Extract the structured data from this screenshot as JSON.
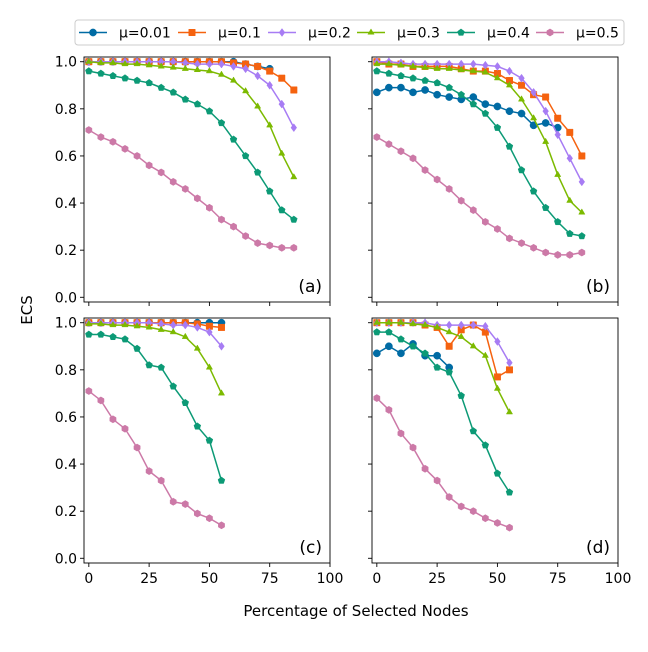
{
  "figure": {
    "xlabel": "Percentage of Selected Nodes",
    "ylabel": "ECS"
  },
  "legend": {
    "placement": "top-center",
    "entries": [
      {
        "label": "μ=0.01",
        "color": "#006ba4",
        "marker": "circle"
      },
      {
        "label": "μ=0.1",
        "color": "#f5620f",
        "marker": "square"
      },
      {
        "label": "μ=0.2",
        "color": "#a77cf4",
        "marker": "diamond"
      },
      {
        "label": "μ=0.3",
        "color": "#7cba00",
        "marker": "triangle"
      },
      {
        "label": "μ=0.4",
        "color": "#0c9a76",
        "marker": "pentagon"
      },
      {
        "label": "μ=0.5",
        "color": "#cc79a7",
        "marker": "hexagon"
      }
    ]
  },
  "chart_data": [
    {
      "type": "line",
      "panel": "(a)",
      "xlim": [
        -2,
        100
      ],
      "ylim": [
        -0.02,
        1.02
      ],
      "xticks": [
        "0",
        "25",
        "50",
        "75",
        "100"
      ],
      "yticks": [
        "0.0",
        "0.2",
        "0.4",
        "0.6",
        "0.8",
        "1.0"
      ],
      "x_tick_labels_shown": false,
      "y_tick_labels_shown": true,
      "series": [
        {
          "name": "μ=0.01",
          "x": [
            0,
            5,
            10,
            15,
            20,
            25,
            30,
            35,
            40,
            45,
            50,
            55,
            60,
            65,
            70,
            75
          ],
          "y": [
            1.0,
            1.0,
            1.0,
            1.0,
            1.0,
            1.0,
            1.0,
            1.0,
            1.0,
            1.0,
            1.0,
            1.0,
            1.0,
            0.99,
            0.98,
            0.97
          ]
        },
        {
          "name": "μ=0.1",
          "x": [
            0,
            5,
            10,
            15,
            20,
            25,
            30,
            35,
            40,
            45,
            50,
            55,
            60,
            65,
            70,
            75,
            80,
            85
          ],
          "y": [
            1.0,
            1.0,
            1.0,
            1.0,
            1.0,
            1.0,
            1.0,
            1.0,
            1.0,
            1.0,
            1.0,
            1.0,
            0.995,
            0.99,
            0.98,
            0.96,
            0.93,
            0.88
          ]
        },
        {
          "name": "μ=0.2",
          "x": [
            0,
            5,
            10,
            15,
            20,
            25,
            30,
            35,
            40,
            45,
            50,
            55,
            60,
            65,
            70,
            75,
            80,
            85
          ],
          "y": [
            1.0,
            1.0,
            1.0,
            1.0,
            1.0,
            1.0,
            1.0,
            1.0,
            0.995,
            0.99,
            0.99,
            0.99,
            0.98,
            0.97,
            0.94,
            0.9,
            0.82,
            0.72
          ]
        },
        {
          "name": "μ=0.3",
          "x": [
            0,
            5,
            10,
            15,
            20,
            25,
            30,
            35,
            40,
            45,
            50,
            55,
            60,
            65,
            70,
            75,
            80,
            85
          ],
          "y": [
            1.0,
            0.995,
            0.995,
            0.99,
            0.99,
            0.985,
            0.98,
            0.975,
            0.97,
            0.965,
            0.96,
            0.945,
            0.92,
            0.875,
            0.81,
            0.73,
            0.61,
            0.51
          ]
        },
        {
          "name": "μ=0.4",
          "x": [
            0,
            5,
            10,
            15,
            20,
            25,
            30,
            35,
            40,
            45,
            50,
            55,
            60,
            65,
            70,
            75,
            80,
            85
          ],
          "y": [
            0.96,
            0.95,
            0.94,
            0.93,
            0.92,
            0.91,
            0.89,
            0.87,
            0.84,
            0.82,
            0.79,
            0.74,
            0.67,
            0.6,
            0.53,
            0.45,
            0.37,
            0.33
          ]
        },
        {
          "name": "μ=0.5",
          "x": [
            0,
            5,
            10,
            15,
            20,
            25,
            30,
            35,
            40,
            45,
            50,
            55,
            60,
            65,
            70,
            75,
            80,
            85
          ],
          "y": [
            0.71,
            0.68,
            0.66,
            0.63,
            0.6,
            0.56,
            0.53,
            0.49,
            0.46,
            0.42,
            0.38,
            0.33,
            0.3,
            0.26,
            0.23,
            0.22,
            0.21,
            0.21
          ]
        }
      ]
    },
    {
      "type": "line",
      "panel": "(b)",
      "xlim": [
        -2,
        100
      ],
      "ylim": [
        -0.02,
        1.02
      ],
      "xticks": [
        "0",
        "25",
        "50",
        "75",
        "100"
      ],
      "yticks": [
        "0.0",
        "0.2",
        "0.4",
        "0.6",
        "0.8",
        "1.0"
      ],
      "x_tick_labels_shown": false,
      "y_tick_labels_shown": false,
      "series": [
        {
          "name": "μ=0.01",
          "x": [
            0,
            5,
            10,
            15,
            20,
            25,
            30,
            35,
            40,
            45,
            50,
            55,
            60,
            65,
            70,
            75
          ],
          "y": [
            0.87,
            0.89,
            0.89,
            0.87,
            0.88,
            0.86,
            0.85,
            0.84,
            0.85,
            0.82,
            0.81,
            0.79,
            0.78,
            0.73,
            0.74,
            0.72
          ]
        },
        {
          "name": "μ=0.1",
          "x": [
            0,
            5,
            10,
            15,
            20,
            25,
            30,
            35,
            40,
            45,
            50,
            55,
            60,
            65,
            70,
            75,
            80,
            85
          ],
          "y": [
            1.0,
            0.99,
            0.99,
            0.98,
            0.98,
            0.98,
            0.98,
            0.97,
            0.96,
            0.96,
            0.95,
            0.92,
            0.9,
            0.86,
            0.85,
            0.76,
            0.7,
            0.6
          ]
        },
        {
          "name": "μ=0.2",
          "x": [
            0,
            5,
            10,
            15,
            20,
            25,
            30,
            35,
            40,
            45,
            50,
            55,
            60,
            65,
            70,
            75,
            80,
            85
          ],
          "y": [
            1.0,
            1.0,
            0.995,
            0.99,
            0.99,
            0.99,
            0.99,
            0.99,
            0.99,
            0.985,
            0.98,
            0.96,
            0.93,
            0.87,
            0.79,
            0.69,
            0.59,
            0.49
          ]
        },
        {
          "name": "μ=0.3",
          "x": [
            0,
            5,
            10,
            15,
            20,
            25,
            30,
            35,
            40,
            45,
            50,
            55,
            60,
            65,
            70,
            75,
            80,
            85
          ],
          "y": [
            0.99,
            0.99,
            0.985,
            0.98,
            0.975,
            0.97,
            0.97,
            0.965,
            0.96,
            0.955,
            0.93,
            0.9,
            0.84,
            0.76,
            0.66,
            0.52,
            0.41,
            0.36
          ]
        },
        {
          "name": "μ=0.4",
          "x": [
            0,
            5,
            10,
            15,
            20,
            25,
            30,
            35,
            40,
            45,
            50,
            55,
            60,
            65,
            70,
            75,
            80,
            85
          ],
          "y": [
            0.96,
            0.95,
            0.94,
            0.93,
            0.92,
            0.91,
            0.89,
            0.86,
            0.82,
            0.78,
            0.72,
            0.64,
            0.54,
            0.45,
            0.38,
            0.32,
            0.27,
            0.26
          ]
        },
        {
          "name": "μ=0.5",
          "x": [
            0,
            5,
            10,
            15,
            20,
            25,
            30,
            35,
            40,
            45,
            50,
            55,
            60,
            65,
            70,
            75,
            80,
            85
          ],
          "y": [
            0.68,
            0.65,
            0.62,
            0.59,
            0.54,
            0.5,
            0.46,
            0.41,
            0.37,
            0.32,
            0.29,
            0.25,
            0.23,
            0.21,
            0.19,
            0.18,
            0.18,
            0.19
          ]
        }
      ]
    },
    {
      "type": "line",
      "panel": "(c)",
      "xlim": [
        -2,
        100
      ],
      "ylim": [
        -0.02,
        1.02
      ],
      "xticks": [
        "0",
        "25",
        "50",
        "75",
        "100"
      ],
      "yticks": [
        "0.0",
        "0.2",
        "0.4",
        "0.6",
        "0.8",
        "1.0"
      ],
      "x_tick_labels_shown": true,
      "y_tick_labels_shown": true,
      "series": [
        {
          "name": "μ=0.01",
          "x": [
            0,
            5,
            10,
            15,
            20,
            25,
            30,
            35,
            40,
            45,
            50,
            55
          ],
          "y": [
            1.0,
            1.0,
            1.0,
            1.0,
            1.0,
            1.0,
            1.0,
            1.0,
            1.0,
            1.0,
            1.0,
            1.0
          ]
        },
        {
          "name": "μ=0.1",
          "x": [
            0,
            5,
            10,
            15,
            20,
            25,
            30,
            35,
            40,
            45,
            50,
            55
          ],
          "y": [
            1.0,
            1.0,
            1.0,
            1.0,
            1.0,
            1.0,
            1.0,
            1.0,
            1.0,
            0.995,
            0.985,
            0.98
          ]
        },
        {
          "name": "μ=0.2",
          "x": [
            0,
            5,
            10,
            15,
            20,
            25,
            30,
            35,
            40,
            45,
            50,
            55
          ],
          "y": [
            1.0,
            1.0,
            1.0,
            1.0,
            1.0,
            1.0,
            0.995,
            0.99,
            0.99,
            0.98,
            0.96,
            0.9
          ]
        },
        {
          "name": "μ=0.3",
          "x": [
            0,
            5,
            10,
            15,
            20,
            25,
            30,
            35,
            40,
            45,
            50,
            55
          ],
          "y": [
            0.995,
            0.995,
            0.99,
            0.99,
            0.985,
            0.98,
            0.97,
            0.96,
            0.94,
            0.89,
            0.81,
            0.7
          ]
        },
        {
          "name": "μ=0.4",
          "x": [
            0,
            5,
            10,
            15,
            20,
            25,
            30,
            35,
            40,
            45,
            50,
            55
          ],
          "y": [
            0.95,
            0.95,
            0.94,
            0.93,
            0.89,
            0.82,
            0.81,
            0.73,
            0.66,
            0.56,
            0.5,
            0.33
          ]
        },
        {
          "name": "μ=0.5",
          "x": [
            0,
            5,
            10,
            15,
            20,
            25,
            30,
            35,
            40,
            45,
            50,
            55
          ],
          "y": [
            0.71,
            0.67,
            0.59,
            0.55,
            0.47,
            0.37,
            0.33,
            0.24,
            0.23,
            0.19,
            0.17,
            0.14
          ]
        }
      ]
    },
    {
      "type": "line",
      "panel": "(d)",
      "xlim": [
        -2,
        100
      ],
      "ylim": [
        -0.02,
        1.02
      ],
      "xticks": [
        "0",
        "25",
        "50",
        "75",
        "100"
      ],
      "yticks": [
        "0.0",
        "0.2",
        "0.4",
        "0.6",
        "0.8",
        "1.0"
      ],
      "x_tick_labels_shown": true,
      "y_tick_labels_shown": false,
      "series": [
        {
          "name": "μ=0.01",
          "x": [
            0,
            5,
            10,
            15,
            20,
            25,
            30
          ],
          "y": [
            0.87,
            0.9,
            0.87,
            0.91,
            0.86,
            0.86,
            0.81
          ]
        },
        {
          "name": "μ=0.1",
          "x": [
            0,
            5,
            10,
            15,
            20,
            25,
            30,
            35,
            40,
            45,
            50,
            55
          ],
          "y": [
            1.0,
            1.0,
            1.0,
            1.0,
            0.99,
            0.98,
            0.9,
            0.97,
            0.99,
            0.96,
            0.77,
            0.8
          ]
        },
        {
          "name": "μ=0.2",
          "x": [
            0,
            5,
            10,
            15,
            20,
            25,
            30,
            35,
            40,
            45,
            50,
            55
          ],
          "y": [
            1.0,
            1.0,
            1.0,
            1.0,
            1.0,
            0.99,
            0.99,
            0.99,
            0.99,
            0.985,
            0.92,
            0.83
          ]
        },
        {
          "name": "μ=0.3",
          "x": [
            0,
            5,
            10,
            15,
            20,
            25,
            30,
            35,
            40,
            45,
            50,
            55
          ],
          "y": [
            1.0,
            1.0,
            1.0,
            0.995,
            0.99,
            0.98,
            0.96,
            0.94,
            0.9,
            0.86,
            0.72,
            0.62
          ]
        },
        {
          "name": "μ=0.4",
          "x": [
            0,
            5,
            10,
            15,
            20,
            25,
            30,
            35,
            40,
            45,
            50,
            55
          ],
          "y": [
            0.96,
            0.96,
            0.93,
            0.9,
            0.87,
            0.81,
            0.79,
            0.69,
            0.54,
            0.48,
            0.36,
            0.28
          ]
        },
        {
          "name": "μ=0.5",
          "x": [
            0,
            5,
            10,
            15,
            20,
            25,
            30,
            35,
            40,
            45,
            50,
            55
          ],
          "y": [
            0.68,
            0.63,
            0.53,
            0.47,
            0.38,
            0.33,
            0.26,
            0.22,
            0.2,
            0.17,
            0.15,
            0.13
          ]
        }
      ]
    }
  ]
}
